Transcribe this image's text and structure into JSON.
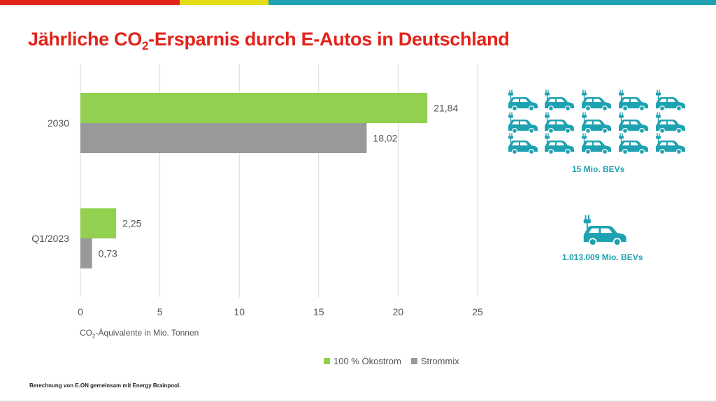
{
  "colors": {
    "red": "#e2231a",
    "yellow": "#e6dc16",
    "teal": "#1ea2b1",
    "green": "#92d050",
    "gray": "#999999"
  },
  "title_main": "Jährliche CO",
  "title_sub": "2",
  "title_rest": "-Ersparnis durch E-Autos in Deutschland",
  "xaxis_label_pre": "CO",
  "xaxis_label_sub": "2",
  "xaxis_label_post": "-Äquivalente in Mio. Tonnen",
  "footnote": "Berechnung von E.ON gemeinsam mit Energy Brainpool.",
  "icons": {
    "small_cars": "car-with-plug-icon",
    "big_car": "car-with-plug-icon"
  },
  "panel": {
    "label_top": "15 Mio. BEVs",
    "label_bottom": "1.013.009 Mio. BEVs"
  },
  "chart_data": {
    "type": "bar",
    "orientation": "horizontal",
    "categories": [
      "2030",
      "Q1/2023"
    ],
    "series": [
      {
        "name": "100 % Ökostrom",
        "color": "#92d050",
        "values": [
          21.84,
          2.25
        ],
        "labels": [
          "21,84",
          "2,25"
        ]
      },
      {
        "name": "Strommix",
        "color": "#999999",
        "values": [
          18.02,
          0.73
        ],
        "labels": [
          "18,02",
          "0,73"
        ]
      }
    ],
    "xlim": [
      0,
      25
    ],
    "xticks": [
      0,
      5,
      10,
      15,
      20,
      25
    ],
    "grid": true,
    "legend_position": "bottom-center"
  }
}
